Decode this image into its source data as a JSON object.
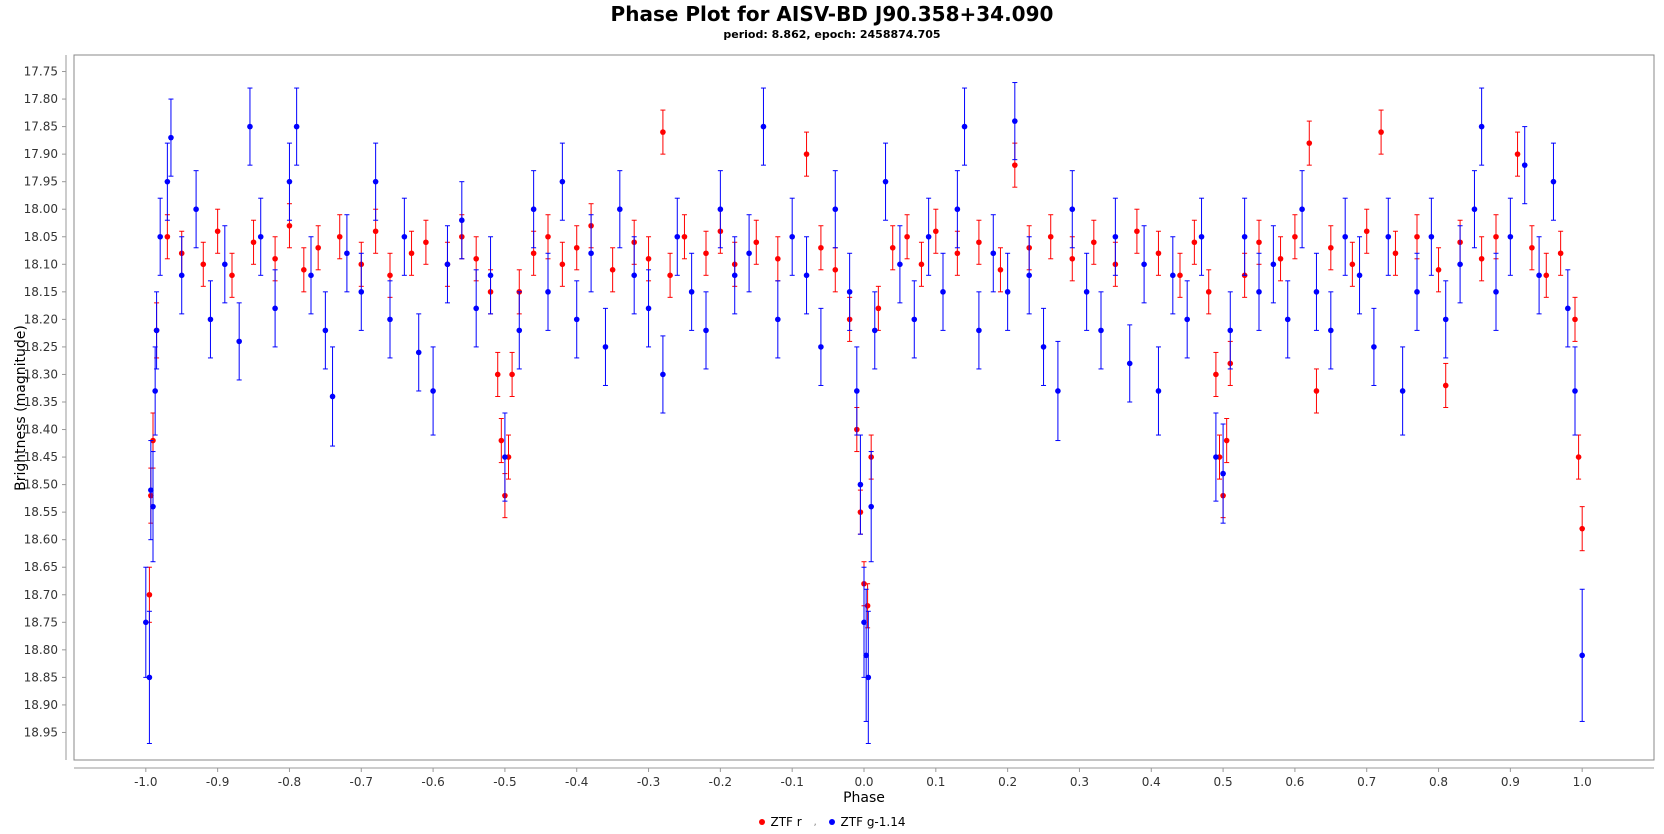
{
  "chart_data": {
    "type": "scatter",
    "title": "Phase Plot for AISV-BD J90.358+34.090",
    "subtitle": "period: 8.862, epoch: 2458874.705",
    "xlabel": "Phase",
    "ylabel": "Brightness (magnitude)",
    "xlim": [
      -1.1,
      1.1
    ],
    "ylim": [
      17.72,
      19.0
    ],
    "y_inverted": true,
    "x_ticks": [
      "-1.0",
      "-0.9",
      "-0.8",
      "-0.7",
      "-0.6",
      "-0.5",
      "-0.4",
      "-0.3",
      "-0.2",
      "-0.1",
      "0.0",
      "0.1",
      "0.2",
      "0.3",
      "0.4",
      "0.5",
      "0.6",
      "0.7",
      "0.8",
      "0.9",
      "1.0"
    ],
    "y_ticks": [
      "17.75",
      "17.80",
      "17.85",
      "17.90",
      "17.95",
      "18.00",
      "18.05",
      "18.10",
      "18.15",
      "18.20",
      "18.25",
      "18.30",
      "18.35",
      "18.40",
      "18.45",
      "18.50",
      "18.55",
      "18.60",
      "18.65",
      "18.70",
      "18.75",
      "18.80",
      "18.85",
      "18.90",
      "18.95"
    ],
    "grid": false,
    "legend_position": "bottom-center",
    "series": [
      {
        "name": "ZTF r",
        "color": "#ff0000",
        "points": [
          [
            -0.995,
            18.7,
            0.05
          ],
          [
            -0.993,
            18.52,
            0.05
          ],
          [
            -0.99,
            18.42,
            0.05
          ],
          [
            -0.985,
            18.22,
            0.05
          ],
          [
            -0.97,
            18.05,
            0.04
          ],
          [
            -0.95,
            18.08,
            0.04
          ],
          [
            -0.92,
            18.1,
            0.04
          ],
          [
            -0.9,
            18.04,
            0.04
          ],
          [
            -0.88,
            18.12,
            0.04
          ],
          [
            -0.85,
            18.06,
            0.04
          ],
          [
            -0.82,
            18.09,
            0.04
          ],
          [
            -0.8,
            18.03,
            0.04
          ],
          [
            -0.78,
            18.11,
            0.04
          ],
          [
            -0.76,
            18.07,
            0.04
          ],
          [
            -0.73,
            18.05,
            0.04
          ],
          [
            -0.7,
            18.1,
            0.04
          ],
          [
            -0.68,
            18.04,
            0.04
          ],
          [
            -0.66,
            18.12,
            0.04
          ],
          [
            -0.63,
            18.08,
            0.04
          ],
          [
            -0.61,
            18.06,
            0.04
          ],
          [
            -0.58,
            18.1,
            0.04
          ],
          [
            -0.56,
            18.05,
            0.04
          ],
          [
            -0.54,
            18.09,
            0.04
          ],
          [
            -0.52,
            18.15,
            0.04
          ],
          [
            -0.51,
            18.3,
            0.04
          ],
          [
            -0.505,
            18.42,
            0.04
          ],
          [
            -0.5,
            18.52,
            0.04
          ],
          [
            -0.495,
            18.45,
            0.04
          ],
          [
            -0.49,
            18.3,
            0.04
          ],
          [
            -0.48,
            18.15,
            0.04
          ],
          [
            -0.46,
            18.08,
            0.04
          ],
          [
            -0.44,
            18.05,
            0.04
          ],
          [
            -0.42,
            18.1,
            0.04
          ],
          [
            -0.4,
            18.07,
            0.04
          ],
          [
            -0.38,
            18.03,
            0.04
          ],
          [
            -0.35,
            18.11,
            0.04
          ],
          [
            -0.32,
            18.06,
            0.04
          ],
          [
            -0.3,
            18.09,
            0.04
          ],
          [
            -0.28,
            17.86,
            0.04
          ],
          [
            -0.27,
            18.12,
            0.04
          ],
          [
            -0.25,
            18.05,
            0.04
          ],
          [
            -0.22,
            18.08,
            0.04
          ],
          [
            -0.2,
            18.04,
            0.04
          ],
          [
            -0.18,
            18.1,
            0.04
          ],
          [
            -0.15,
            18.06,
            0.04
          ],
          [
            -0.12,
            18.09,
            0.04
          ],
          [
            -0.08,
            17.9,
            0.04
          ],
          [
            -0.06,
            18.07,
            0.04
          ],
          [
            -0.04,
            18.11,
            0.04
          ],
          [
            -0.02,
            18.2,
            0.04
          ],
          [
            -0.01,
            18.4,
            0.04
          ],
          [
            -0.005,
            18.55,
            0.04
          ],
          [
            0.0,
            18.68,
            0.04
          ],
          [
            0.005,
            18.72,
            0.04
          ],
          [
            0.01,
            18.45,
            0.04
          ],
          [
            0.02,
            18.18,
            0.04
          ],
          [
            0.04,
            18.07,
            0.04
          ],
          [
            0.06,
            18.05,
            0.04
          ],
          [
            0.08,
            18.1,
            0.04
          ],
          [
            0.1,
            18.04,
            0.04
          ],
          [
            0.13,
            18.08,
            0.04
          ],
          [
            0.16,
            18.06,
            0.04
          ],
          [
            0.19,
            18.11,
            0.04
          ],
          [
            0.21,
            17.92,
            0.04
          ],
          [
            0.23,
            18.07,
            0.04
          ],
          [
            0.26,
            18.05,
            0.04
          ],
          [
            0.29,
            18.09,
            0.04
          ],
          [
            0.32,
            18.06,
            0.04
          ],
          [
            0.35,
            18.1,
            0.04
          ],
          [
            0.38,
            18.04,
            0.04
          ],
          [
            0.41,
            18.08,
            0.04
          ],
          [
            0.44,
            18.12,
            0.04
          ],
          [
            0.46,
            18.06,
            0.04
          ],
          [
            0.48,
            18.15,
            0.04
          ],
          [
            0.49,
            18.3,
            0.04
          ],
          [
            0.495,
            18.45,
            0.04
          ],
          [
            0.5,
            18.52,
            0.04
          ],
          [
            0.505,
            18.42,
            0.04
          ],
          [
            0.51,
            18.28,
            0.04
          ],
          [
            0.53,
            18.12,
            0.04
          ],
          [
            0.55,
            18.06,
            0.04
          ],
          [
            0.58,
            18.09,
            0.04
          ],
          [
            0.6,
            18.05,
            0.04
          ],
          [
            0.62,
            17.88,
            0.04
          ],
          [
            0.63,
            18.33,
            0.04
          ],
          [
            0.65,
            18.07,
            0.04
          ],
          [
            0.68,
            18.1,
            0.04
          ],
          [
            0.7,
            18.04,
            0.04
          ],
          [
            0.72,
            17.86,
            0.04
          ],
          [
            0.74,
            18.08,
            0.04
          ],
          [
            0.77,
            18.05,
            0.04
          ],
          [
            0.8,
            18.11,
            0.04
          ],
          [
            0.81,
            18.32,
            0.04
          ],
          [
            0.83,
            18.06,
            0.04
          ],
          [
            0.86,
            18.09,
            0.04
          ],
          [
            0.88,
            18.05,
            0.04
          ],
          [
            0.91,
            17.9,
            0.04
          ],
          [
            0.93,
            18.07,
            0.04
          ],
          [
            0.95,
            18.12,
            0.04
          ],
          [
            0.97,
            18.08,
            0.04
          ],
          [
            0.99,
            18.2,
            0.04
          ],
          [
            0.995,
            18.45,
            0.04
          ],
          [
            1.0,
            18.58,
            0.04
          ]
        ]
      },
      {
        "name": "ZTF g-1.14",
        "color": "#0000ff",
        "points": [
          [
            -1.0,
            18.75,
            0.1
          ],
          [
            -0.995,
            18.85,
            0.12
          ],
          [
            -0.993,
            18.51,
            0.09
          ],
          [
            -0.99,
            18.54,
            0.1
          ],
          [
            -0.987,
            18.33,
            0.08
          ],
          [
            -0.985,
            18.22,
            0.07
          ],
          [
            -0.98,
            18.05,
            0.07
          ],
          [
            -0.97,
            17.95,
            0.07
          ],
          [
            -0.965,
            17.87,
            0.07
          ],
          [
            -0.95,
            18.12,
            0.07
          ],
          [
            -0.93,
            18.0,
            0.07
          ],
          [
            -0.91,
            18.2,
            0.07
          ],
          [
            -0.89,
            18.1,
            0.07
          ],
          [
            -0.87,
            18.24,
            0.07
          ],
          [
            -0.855,
            17.85,
            0.07
          ],
          [
            -0.84,
            18.05,
            0.07
          ],
          [
            -0.82,
            18.18,
            0.07
          ],
          [
            -0.8,
            17.95,
            0.07
          ],
          [
            -0.79,
            17.85,
            0.07
          ],
          [
            -0.77,
            18.12,
            0.07
          ],
          [
            -0.75,
            18.22,
            0.07
          ],
          [
            -0.74,
            18.34,
            0.09
          ],
          [
            -0.72,
            18.08,
            0.07
          ],
          [
            -0.7,
            18.15,
            0.07
          ],
          [
            -0.68,
            17.95,
            0.07
          ],
          [
            -0.66,
            18.2,
            0.07
          ],
          [
            -0.64,
            18.05,
            0.07
          ],
          [
            -0.62,
            18.26,
            0.07
          ],
          [
            -0.6,
            18.33,
            0.08
          ],
          [
            -0.58,
            18.1,
            0.07
          ],
          [
            -0.56,
            18.02,
            0.07
          ],
          [
            -0.54,
            18.18,
            0.07
          ],
          [
            -0.52,
            18.12,
            0.07
          ],
          [
            -0.5,
            18.45,
            0.08
          ],
          [
            -0.48,
            18.22,
            0.07
          ],
          [
            -0.46,
            18.0,
            0.07
          ],
          [
            -0.44,
            18.15,
            0.07
          ],
          [
            -0.42,
            17.95,
            0.07
          ],
          [
            -0.4,
            18.2,
            0.07
          ],
          [
            -0.38,
            18.08,
            0.07
          ],
          [
            -0.36,
            18.25,
            0.07
          ],
          [
            -0.34,
            18.0,
            0.07
          ],
          [
            -0.32,
            18.12,
            0.07
          ],
          [
            -0.3,
            18.18,
            0.07
          ],
          [
            -0.28,
            18.3,
            0.07
          ],
          [
            -0.26,
            18.05,
            0.07
          ],
          [
            -0.24,
            18.15,
            0.07
          ],
          [
            -0.22,
            18.22,
            0.07
          ],
          [
            -0.2,
            18.0,
            0.07
          ],
          [
            -0.18,
            18.12,
            0.07
          ],
          [
            -0.16,
            18.08,
            0.07
          ],
          [
            -0.14,
            17.85,
            0.07
          ],
          [
            -0.12,
            18.2,
            0.07
          ],
          [
            -0.1,
            18.05,
            0.07
          ],
          [
            -0.08,
            18.12,
            0.07
          ],
          [
            -0.06,
            18.25,
            0.07
          ],
          [
            -0.04,
            18.0,
            0.07
          ],
          [
            -0.02,
            18.15,
            0.07
          ],
          [
            -0.01,
            18.33,
            0.08
          ],
          [
            -0.005,
            18.5,
            0.09
          ],
          [
            0.0,
            18.75,
            0.1
          ],
          [
            0.003,
            18.81,
            0.12
          ],
          [
            0.006,
            18.85,
            0.12
          ],
          [
            0.01,
            18.54,
            0.1
          ],
          [
            0.015,
            18.22,
            0.07
          ],
          [
            0.03,
            17.95,
            0.07
          ],
          [
            0.05,
            18.1,
            0.07
          ],
          [
            0.07,
            18.2,
            0.07
          ],
          [
            0.09,
            18.05,
            0.07
          ],
          [
            0.11,
            18.15,
            0.07
          ],
          [
            0.13,
            18.0,
            0.07
          ],
          [
            0.14,
            17.85,
            0.07
          ],
          [
            0.16,
            18.22,
            0.07
          ],
          [
            0.18,
            18.08,
            0.07
          ],
          [
            0.2,
            18.15,
            0.07
          ],
          [
            0.21,
            17.84,
            0.07
          ],
          [
            0.23,
            18.12,
            0.07
          ],
          [
            0.25,
            18.25,
            0.07
          ],
          [
            0.27,
            18.33,
            0.09
          ],
          [
            0.29,
            18.0,
            0.07
          ],
          [
            0.31,
            18.15,
            0.07
          ],
          [
            0.33,
            18.22,
            0.07
          ],
          [
            0.35,
            18.05,
            0.07
          ],
          [
            0.37,
            18.28,
            0.07
          ],
          [
            0.39,
            18.1,
            0.07
          ],
          [
            0.41,
            18.33,
            0.08
          ],
          [
            0.43,
            18.12,
            0.07
          ],
          [
            0.45,
            18.2,
            0.07
          ],
          [
            0.47,
            18.05,
            0.07
          ],
          [
            0.49,
            18.45,
            0.08
          ],
          [
            0.5,
            18.48,
            0.09
          ],
          [
            0.51,
            18.22,
            0.07
          ],
          [
            0.53,
            18.05,
            0.07
          ],
          [
            0.55,
            18.15,
            0.07
          ],
          [
            0.57,
            18.1,
            0.07
          ],
          [
            0.59,
            18.2,
            0.07
          ],
          [
            0.61,
            18.0,
            0.07
          ],
          [
            0.63,
            18.15,
            0.07
          ],
          [
            0.65,
            18.22,
            0.07
          ],
          [
            0.67,
            18.05,
            0.07
          ],
          [
            0.69,
            18.12,
            0.07
          ],
          [
            0.71,
            18.25,
            0.07
          ],
          [
            0.73,
            18.05,
            0.07
          ],
          [
            0.75,
            18.33,
            0.08
          ],
          [
            0.77,
            18.15,
            0.07
          ],
          [
            0.79,
            18.05,
            0.07
          ],
          [
            0.81,
            18.2,
            0.07
          ],
          [
            0.83,
            18.1,
            0.07
          ],
          [
            0.85,
            18.0,
            0.07
          ],
          [
            0.86,
            17.85,
            0.07
          ],
          [
            0.88,
            18.15,
            0.07
          ],
          [
            0.9,
            18.05,
            0.07
          ],
          [
            0.92,
            17.92,
            0.07
          ],
          [
            0.94,
            18.12,
            0.07
          ],
          [
            0.96,
            17.95,
            0.07
          ],
          [
            0.98,
            18.18,
            0.07
          ],
          [
            0.99,
            18.33,
            0.08
          ],
          [
            1.0,
            18.81,
            0.12
          ]
        ]
      }
    ]
  }
}
